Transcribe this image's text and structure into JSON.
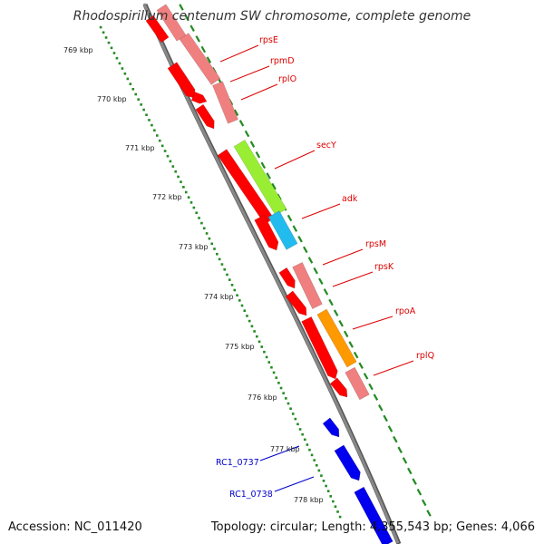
{
  "title": "Rhodospirillum centenum SW chromosome, complete genome",
  "accession": "Accession: NC_011420",
  "summary": "Topology: circular; Length: 4,355,543 bp; Genes: 4,066",
  "colors": {
    "backbone": "#888888",
    "tick": "#228B22",
    "ribosomal_protein": "#ff0000",
    "ribosomal_protein_light": "#f08080",
    "secy": "#99ee33",
    "adk": "#22bbee",
    "rpoa": "#ff9900",
    "other_gene": "#0000ee",
    "label_red": "#dd0000",
    "label_blue": "#0000cc"
  },
  "scale_labels": [
    "769 kbp",
    "770 kbp",
    "771 kbp",
    "772 kbp",
    "773 kbp",
    "774 kbp",
    "775 kbp",
    "776 kbp",
    "777 kbp",
    "778 kbp"
  ],
  "gene_labels": [
    {
      "text": "rpsE",
      "color": "label_red"
    },
    {
      "text": "rpmD",
      "color": "label_red"
    },
    {
      "text": "rplO",
      "color": "label_red"
    },
    {
      "text": "secY",
      "color": "label_red"
    },
    {
      "text": "adk",
      "color": "label_red"
    },
    {
      "text": "rpsM",
      "color": "label_red"
    },
    {
      "text": "rpsK",
      "color": "label_red"
    },
    {
      "text": "rpoA",
      "color": "label_red"
    },
    {
      "text": "rplQ",
      "color": "label_red"
    },
    {
      "text": "RC1_0737",
      "color": "label_blue"
    },
    {
      "text": "RC1_0738",
      "color": "label_blue"
    }
  ]
}
